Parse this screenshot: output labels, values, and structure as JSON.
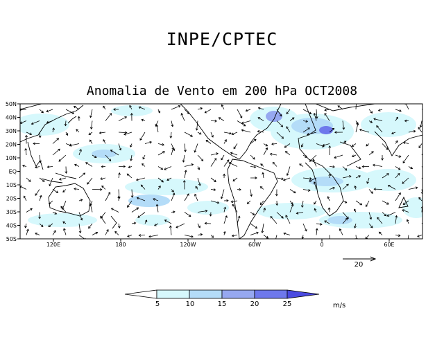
{
  "header": {
    "org_title": "INPE/CPTEC",
    "map_title": "Anomalia de Vento em 200 hPa OCT2008"
  },
  "map": {
    "lat_labels": [
      "50N",
      "40N",
      "30N",
      "20N",
      "10N",
      "EQ",
      "10S",
      "20S",
      "30S",
      "40S",
      "50S"
    ],
    "lon_labels": [
      "120E",
      "180",
      "120W",
      "60W",
      "0",
      "60E"
    ],
    "reference_vector": {
      "label": "20",
      "value": 20
    }
  },
  "colorbar": {
    "ticks": [
      "5",
      "10",
      "15",
      "20",
      "25"
    ],
    "unit": "m/s",
    "colors": [
      "#ffffff",
      "#d6f8fc",
      "#b4dcf8",
      "#96a8f0",
      "#6e78ec",
      "#4a4ae0",
      "#9b1fc9"
    ]
  }
}
